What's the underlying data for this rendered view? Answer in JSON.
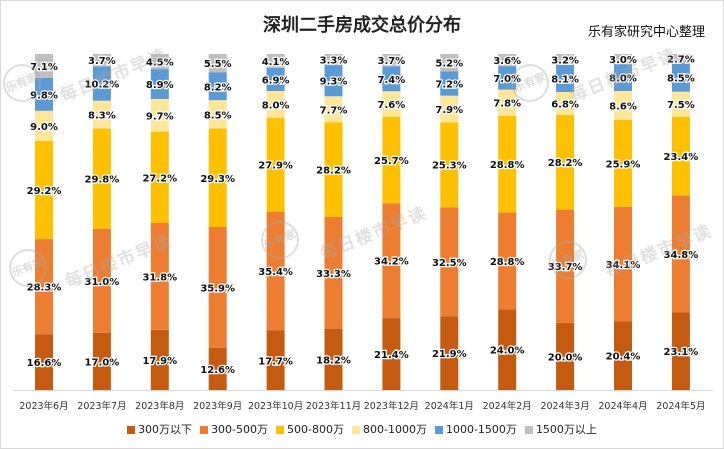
{
  "chart_data": {
    "type": "bar",
    "stacked": true,
    "percent": true,
    "title": "深圳二手房成交总价分布",
    "source": "乐有家研究中心整理",
    "watermark": "每日楼市早读",
    "watermark_logo": "乐有家",
    "categories": [
      "2023年6月",
      "2023年7月",
      "2023年8月",
      "2023年9月",
      "2023年10月",
      "2023年11月",
      "2023年12月",
      "2024年1月",
      "2024年2月",
      "2024年3月",
      "2024年4月",
      "2024年5月"
    ],
    "series": [
      {
        "name": "300万以下",
        "color": "#c55a11",
        "values": [
          16.6,
          17.0,
          17.9,
          12.6,
          17.7,
          18.2,
          21.4,
          21.9,
          24.0,
          20.0,
          20.4,
          23.1
        ]
      },
      {
        "name": "300-500万",
        "color": "#ed7d31",
        "values": [
          28.3,
          31.0,
          31.8,
          35.9,
          35.4,
          33.3,
          34.2,
          32.5,
          28.8,
          33.7,
          34.1,
          34.8
        ]
      },
      {
        "name": "500-800万",
        "color": "#ffc000",
        "values": [
          29.2,
          29.8,
          27.2,
          29.3,
          27.9,
          28.2,
          25.7,
          25.3,
          28.8,
          28.2,
          25.9,
          23.4
        ]
      },
      {
        "name": "800-1000万",
        "color": "#ffe699",
        "values": [
          9.0,
          8.3,
          9.7,
          8.5,
          8.0,
          7.7,
          7.6,
          7.9,
          7.8,
          6.8,
          8.6,
          7.5
        ]
      },
      {
        "name": "1000-1500万",
        "color": "#5b9bd5",
        "values": [
          9.8,
          10.2,
          8.9,
          8.2,
          6.9,
          9.3,
          7.4,
          7.2,
          7.0,
          8.1,
          8.0,
          8.5
        ]
      },
      {
        "name": "1500万以上",
        "color": "#bfbfbf",
        "values": [
          7.1,
          3.7,
          4.5,
          5.5,
          4.1,
          3.3,
          3.7,
          5.2,
          3.6,
          3.2,
          3.0,
          2.7
        ]
      }
    ],
    "labels": [
      [
        "16.6%",
        "28.3%",
        "29.2%",
        "9.0%",
        "9.8%",
        "7.1%"
      ],
      [
        "17.0%",
        "31.0%",
        "29.8%",
        "8.3%",
        "10.2%",
        "3.7%"
      ],
      [
        "17.9%",
        "31.8%",
        "27.2%",
        "9.7%",
        "8.9%",
        "4.5%"
      ],
      [
        "12.6%",
        "35.9%",
        "29.3%",
        "8.5%",
        "8.2%",
        "5.5%"
      ],
      [
        "17.7%",
        "35.4%",
        "27.9%",
        "8.0%",
        "6.9%",
        "4.1%"
      ],
      [
        "18.2%",
        "33.3%",
        "28.2%",
        "7.7%",
        "9.3%",
        "3.3%"
      ],
      [
        "21.4%",
        "34.2%",
        "25.7%",
        "7.6%",
        "7.4%",
        "3.7%"
      ],
      [
        "21.9%",
        "32.5%",
        "25.3%",
        "7.9%",
        "7.2%",
        "5.2%"
      ],
      [
        "24.0%",
        "28.8%",
        "28.8%",
        "7.8%",
        "7.0%",
        "3.6%"
      ],
      [
        "20.0%",
        "33.7%",
        "28.2%",
        "6.8%",
        "8.1%",
        "3.2%"
      ],
      [
        "20.4%",
        "34.1%",
        "25.9%",
        "8.6%",
        "8.0%",
        "3.0%"
      ],
      [
        "23.1%",
        "34.8%",
        "23.4%",
        "7.5%",
        "8.5%",
        "2.7%"
      ]
    ],
    "ylim": [
      0,
      100
    ],
    "grid": false,
    "legend": "bottom"
  }
}
